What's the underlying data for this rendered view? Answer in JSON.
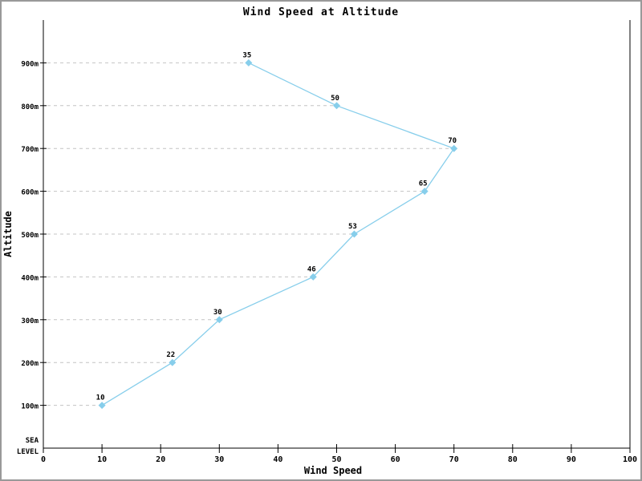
{
  "window": {
    "background_color": "#ffffff",
    "border_color": "#999999"
  },
  "chart_data": {
    "type": "line",
    "title": "Wind Speed at Altitude",
    "xlabel": "Wind Speed",
    "ylabel": "Altitude",
    "xlim": [
      0,
      100
    ],
    "x_ticks": [
      0,
      10,
      20,
      30,
      40,
      50,
      60,
      70,
      80,
      90,
      100
    ],
    "y_tick_labels": [
      "100m",
      "200m",
      "300m",
      "400m",
      "500m",
      "600m",
      "700m",
      "800m",
      "900m"
    ],
    "sea_level_label": [
      "SEA",
      "LEVEL"
    ],
    "categories_altitude_m": [
      100,
      200,
      300,
      400,
      500,
      600,
      700,
      800,
      900
    ],
    "series": [
      {
        "name": "Wind Speed",
        "points": [
          {
            "altitude_m": 100,
            "speed": 10,
            "label": "10"
          },
          {
            "altitude_m": 200,
            "speed": 22,
            "label": "22"
          },
          {
            "altitude_m": 300,
            "speed": 30,
            "label": "30"
          },
          {
            "altitude_m": 400,
            "speed": 46,
            "label": "46"
          },
          {
            "altitude_m": 500,
            "speed": 53,
            "label": "53"
          },
          {
            "altitude_m": 600,
            "speed": 65,
            "label": "65"
          },
          {
            "altitude_m": 700,
            "speed": 70,
            "label": "70"
          },
          {
            "altitude_m": 800,
            "speed": 50,
            "label": "50"
          },
          {
            "altitude_m": 900,
            "speed": 35,
            "label": "35"
          }
        ]
      }
    ],
    "colors": {
      "series": "#87CEEB",
      "leader_dashes": "#c4c4c4",
      "axis": "#000000",
      "text": "#000000"
    },
    "layout_hints": {
      "legend": "none",
      "grid": "dashed horizontal leader lines from y-axis to each data point",
      "marker": "diamond",
      "frame": "left, right and bottom axis lines; no top line"
    }
  }
}
